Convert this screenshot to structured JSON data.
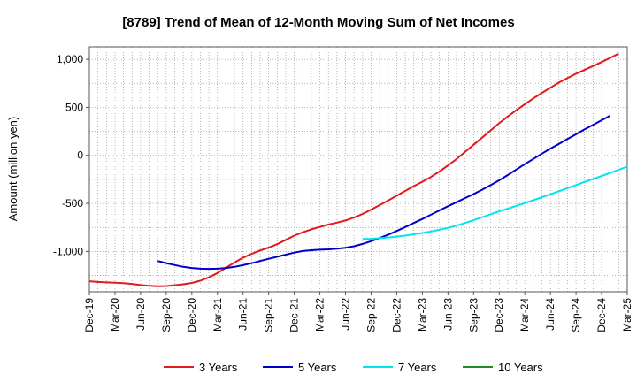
{
  "chart_data": {
    "type": "line",
    "title": "[8789]  Trend of Mean of 12-Month Moving Sum of Net Incomes",
    "xlabel": "",
    "ylabel": "Amount (million yen)",
    "x_ticks": [
      "Dec-19",
      "Mar-20",
      "Jun-20",
      "Sep-20",
      "Dec-20",
      "Mar-21",
      "Jun-21",
      "Sep-21",
      "Dec-21",
      "Mar-22",
      "Jun-22",
      "Sep-22",
      "Dec-22",
      "Mar-23",
      "Jun-23",
      "Sep-23",
      "Dec-23",
      "Mar-24",
      "Jun-24",
      "Sep-24",
      "Dec-24",
      "Mar-25"
    ],
    "y_ticks": [
      "1,000",
      "500",
      "0",
      "-500",
      "-1,000"
    ],
    "y_tick_values": [
      1000,
      500,
      0,
      -500,
      -1000
    ],
    "ylim": [
      -1420,
      1130
    ],
    "grid": true,
    "legend_position": "bottom",
    "series": [
      {
        "name": "3 Years",
        "color": "#e31a1c",
        "points": [
          [
            "Dec-19",
            -1310
          ],
          [
            "Jan-20",
            -1318
          ],
          [
            "Feb-20",
            -1322
          ],
          [
            "Mar-20",
            -1325
          ],
          [
            "Apr-20",
            -1330
          ],
          [
            "May-20",
            -1338
          ],
          [
            "Jun-20",
            -1350
          ],
          [
            "Jul-20",
            -1358
          ],
          [
            "Aug-20",
            -1362
          ],
          [
            "Sep-20",
            -1360
          ],
          [
            "Oct-20",
            -1352
          ],
          [
            "Nov-20",
            -1342
          ],
          [
            "Dec-20",
            -1328
          ],
          [
            "Jan-21",
            -1305
          ],
          [
            "Feb-21",
            -1270
          ],
          [
            "Mar-21",
            -1225
          ],
          [
            "Apr-21",
            -1170
          ],
          [
            "May-21",
            -1115
          ],
          [
            "Jun-21",
            -1065
          ],
          [
            "Jul-21",
            -1025
          ],
          [
            "Aug-21",
            -990
          ],
          [
            "Sep-21",
            -960
          ],
          [
            "Oct-21",
            -925
          ],
          [
            "Nov-21",
            -880
          ],
          [
            "Dec-21",
            -835
          ],
          [
            "Jan-22",
            -800
          ],
          [
            "Feb-22",
            -770
          ],
          [
            "Mar-22",
            -745
          ],
          [
            "Apr-22",
            -720
          ],
          [
            "May-22",
            -700
          ],
          [
            "Jun-22",
            -678
          ],
          [
            "Jul-22",
            -648
          ],
          [
            "Aug-22",
            -610
          ],
          [
            "Sep-22",
            -565
          ],
          [
            "Oct-22",
            -518
          ],
          [
            "Nov-22",
            -470
          ],
          [
            "Dec-22",
            -420
          ],
          [
            "Jan-23",
            -370
          ],
          [
            "Feb-23",
            -320
          ],
          [
            "Mar-23",
            -275
          ],
          [
            "Apr-23",
            -225
          ],
          [
            "May-23",
            -168
          ],
          [
            "Jun-23",
            -105
          ],
          [
            "Jul-23",
            -38
          ],
          [
            "Aug-23",
            35
          ],
          [
            "Sep-23",
            110
          ],
          [
            "Oct-23",
            185
          ],
          [
            "Nov-23",
            260
          ],
          [
            "Dec-23",
            335
          ],
          [
            "Jan-24",
            405
          ],
          [
            "Feb-24",
            470
          ],
          [
            "Mar-24",
            533
          ],
          [
            "Apr-24",
            593
          ],
          [
            "May-24",
            650
          ],
          [
            "Jun-24",
            705
          ],
          [
            "Jul-24",
            758
          ],
          [
            "Aug-24",
            805
          ],
          [
            "Sep-24",
            850
          ],
          [
            "Oct-24",
            890
          ],
          [
            "Nov-24",
            930
          ],
          [
            "Dec-24",
            972
          ],
          [
            "Jan-25",
            1015
          ],
          [
            "Feb-25",
            1060
          ]
        ]
      },
      {
        "name": "5 Years",
        "color": "#0000cc",
        "points": [
          [
            "Aug-20",
            -1100
          ],
          [
            "Sep-20",
            -1122
          ],
          [
            "Oct-20",
            -1142
          ],
          [
            "Nov-20",
            -1160
          ],
          [
            "Dec-20",
            -1172
          ],
          [
            "Jan-21",
            -1180
          ],
          [
            "Feb-21",
            -1182
          ],
          [
            "Mar-21",
            -1180
          ],
          [
            "Apr-21",
            -1172
          ],
          [
            "May-21",
            -1160
          ],
          [
            "Jun-21",
            -1143
          ],
          [
            "Jul-21",
            -1123
          ],
          [
            "Aug-21",
            -1100
          ],
          [
            "Sep-21",
            -1077
          ],
          [
            "Oct-21",
            -1055
          ],
          [
            "Nov-21",
            -1033
          ],
          [
            "Dec-21",
            -1012
          ],
          [
            "Jan-22",
            -996
          ],
          [
            "Feb-22",
            -987
          ],
          [
            "Mar-22",
            -982
          ],
          [
            "Apr-22",
            -978
          ],
          [
            "May-22",
            -972
          ],
          [
            "Jun-22",
            -962
          ],
          [
            "Jul-22",
            -946
          ],
          [
            "Aug-22",
            -922
          ],
          [
            "Sep-22",
            -893
          ],
          [
            "Oct-22",
            -860
          ],
          [
            "Nov-22",
            -825
          ],
          [
            "Dec-22",
            -787
          ],
          [
            "Jan-23",
            -746
          ],
          [
            "Feb-23",
            -704
          ],
          [
            "Mar-23",
            -662
          ],
          [
            "Apr-23",
            -618
          ],
          [
            "May-23",
            -573
          ],
          [
            "Jun-23",
            -530
          ],
          [
            "Jul-23",
            -487
          ],
          [
            "Aug-23",
            -445
          ],
          [
            "Sep-23",
            -403
          ],
          [
            "Oct-23",
            -358
          ],
          [
            "Nov-23",
            -310
          ],
          [
            "Dec-23",
            -260
          ],
          [
            "Jan-24",
            -205
          ],
          [
            "Feb-24",
            -148
          ],
          [
            "Mar-24",
            -92
          ],
          [
            "Apr-24",
            -37
          ],
          [
            "May-24",
            18
          ],
          [
            "Jun-24",
            70
          ],
          [
            "Jul-24",
            120
          ],
          [
            "Aug-24",
            170
          ],
          [
            "Sep-24",
            220
          ],
          [
            "Oct-24",
            270
          ],
          [
            "Nov-24",
            318
          ],
          [
            "Dec-24",
            366
          ],
          [
            "Jan-25",
            413
          ]
        ]
      },
      {
        "name": "7 Years",
        "color": "#00e5ee",
        "points": [
          [
            "Aug-22",
            -870
          ],
          [
            "Sep-22",
            -868
          ],
          [
            "Oct-22",
            -862
          ],
          [
            "Nov-22",
            -855
          ],
          [
            "Dec-22",
            -846
          ],
          [
            "Jan-23",
            -835
          ],
          [
            "Feb-23",
            -822
          ],
          [
            "Mar-23",
            -808
          ],
          [
            "Apr-23",
            -792
          ],
          [
            "May-23",
            -775
          ],
          [
            "Jun-23",
            -755
          ],
          [
            "Jul-23",
            -731
          ],
          [
            "Aug-23",
            -704
          ],
          [
            "Sep-23",
            -675
          ],
          [
            "Oct-23",
            -644
          ],
          [
            "Nov-23",
            -613
          ],
          [
            "Dec-23",
            -583
          ],
          [
            "Jan-24",
            -555
          ],
          [
            "Feb-24",
            -526
          ],
          [
            "Mar-24",
            -497
          ],
          [
            "Apr-24",
            -467
          ],
          [
            "May-24",
            -436
          ],
          [
            "Jun-24",
            -405
          ],
          [
            "Jul-24",
            -373
          ],
          [
            "Aug-24",
            -341
          ],
          [
            "Sep-24",
            -309
          ],
          [
            "Oct-24",
            -277
          ],
          [
            "Nov-24",
            -246
          ],
          [
            "Dec-24",
            -215
          ],
          [
            "Jan-25",
            -183
          ],
          [
            "Feb-25",
            -150
          ],
          [
            "Mar-25",
            -118
          ]
        ]
      },
      {
        "name": "10 Years",
        "color": "#228b22",
        "points": []
      }
    ]
  }
}
